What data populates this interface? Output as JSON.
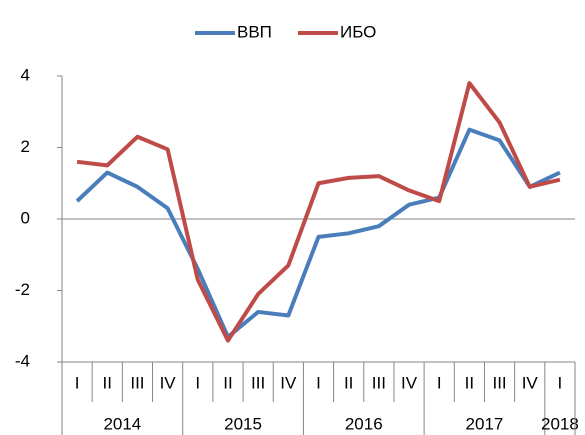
{
  "chart_data": {
    "type": "line",
    "groups": [
      {
        "name": "2014",
        "categories": [
          "I",
          "II",
          "III",
          "IV"
        ]
      },
      {
        "name": "2015",
        "categories": [
          "I",
          "II",
          "III",
          "IV"
        ]
      },
      {
        "name": "2016",
        "categories": [
          "I",
          "II",
          "III",
          "IV"
        ]
      },
      {
        "name": "2017",
        "categories": [
          "I",
          "II",
          "III",
          "IV"
        ]
      },
      {
        "name": "2018",
        "categories": [
          "I"
        ]
      }
    ],
    "series": [
      {
        "name": "ВВП",
        "color": "#4a7ebb",
        "values": [
          0.5,
          1.3,
          0.9,
          0.3,
          -1.4,
          -3.3,
          -2.6,
          -2.7,
          -0.5,
          -0.4,
          -0.2,
          0.4,
          0.6,
          2.5,
          2.2,
          0.9,
          1.3
        ]
      },
      {
        "name": "ИБО",
        "color": "#be4b48",
        "values": [
          1.6,
          1.5,
          2.3,
          1.95,
          -1.7,
          -3.4,
          -2.1,
          -1.3,
          1.0,
          1.15,
          1.2,
          0.8,
          0.5,
          3.8,
          2.7,
          0.9,
          1.1
        ]
      }
    ],
    "ylim": [
      -4,
      4
    ],
    "yticks": [
      -4,
      -2,
      0,
      2,
      4
    ],
    "legend": "top"
  }
}
